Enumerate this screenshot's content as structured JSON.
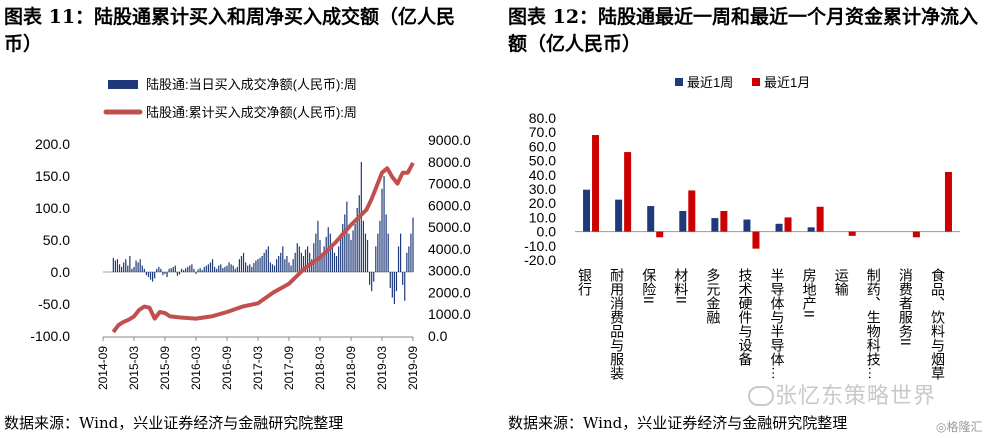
{
  "left": {
    "title": "图表 11：陆股通累计买入和周净买入成交额（亿人民币）",
    "source": "数据来源：Wind，兴业证券经济与金融研究院整理",
    "chart_data": {
      "type": "bar+line",
      "legend": [
        "陆股通:当日买入成交净额(人民币):周",
        "陆股通:累计买入成交净额(人民币):周"
      ],
      "legend_position": "top",
      "x_ticks": [
        "2014-09",
        "2015-03",
        "2015-09",
        "2016-03",
        "2016-09",
        "2017-03",
        "2017-09",
        "2018-03",
        "2018-09",
        "2019-03",
        "2019-09"
      ],
      "y_left_ticks": [
        "200.0",
        "150.0",
        "100.0",
        "50.0",
        "0.0",
        "-50.0",
        "-100.0"
      ],
      "y_left_range": [
        -100,
        200
      ],
      "y_right_ticks": [
        "9000.0",
        "8000.0",
        "7000.0",
        "6000.0",
        "5000.0",
        "4000.0",
        "3000.0",
        "2000.0",
        "1000.0",
        "0.0"
      ],
      "y_right_range": [
        0,
        9000
      ],
      "colors": {
        "bar": "#1f3a7a",
        "line": "#c0504d"
      },
      "cumulative_series": {
        "name": "陆股通:累计买入成交净额(人民币):周",
        "points": [
          [
            "2014-11",
            180
          ],
          [
            "2014-12",
            500
          ],
          [
            "2015-01",
            650
          ],
          [
            "2015-02",
            750
          ],
          [
            "2015-03",
            900
          ],
          [
            "2015-04",
            1200
          ],
          [
            "2015-05",
            1350
          ],
          [
            "2015-06",
            1300
          ],
          [
            "2015-07",
            800
          ],
          [
            "2015-08",
            1100
          ],
          [
            "2015-09",
            1050
          ],
          [
            "2015-10",
            900
          ],
          [
            "2015-12",
            850
          ],
          [
            "2016-03",
            800
          ],
          [
            "2016-06",
            900
          ],
          [
            "2016-09",
            1100
          ],
          [
            "2016-12",
            1350
          ],
          [
            "2017-03",
            1500
          ],
          [
            "2017-06",
            2000
          ],
          [
            "2017-09",
            2400
          ],
          [
            "2017-12",
            3100
          ],
          [
            "2018-03",
            3600
          ],
          [
            "2018-06",
            4300
          ],
          [
            "2018-09",
            5100
          ],
          [
            "2018-12",
            5800
          ],
          [
            "2019-01",
            6300
          ],
          [
            "2019-03",
            7500
          ],
          [
            "2019-04",
            7700
          ],
          [
            "2019-05",
            7300
          ],
          [
            "2019-06",
            7000
          ],
          [
            "2019-07",
            7500
          ],
          [
            "2019-08",
            7500
          ],
          [
            "2019-09",
            7950
          ]
        ]
      },
      "weekly_bars_note": "weekly bars approximated",
      "weekly_series": {
        "name": "陆股通:当日买入成交净额(人民币):周",
        "values": [
          22,
          18,
          20,
          12,
          8,
          15,
          20,
          10,
          25,
          5,
          8,
          18,
          15,
          20,
          10,
          5,
          -5,
          -8,
          -12,
          -15,
          -10,
          5,
          8,
          5,
          -5,
          -3,
          -8,
          5,
          6,
          8,
          10,
          -6,
          -4,
          5,
          3,
          6,
          8,
          10,
          12,
          5,
          -3,
          4,
          6,
          3,
          8,
          10,
          12,
          15,
          20,
          8,
          5,
          10,
          12,
          6,
          8,
          10,
          15,
          12,
          10,
          5,
          8,
          20,
          25,
          30,
          15,
          10,
          12,
          8,
          14,
          18,
          20,
          22,
          25,
          30,
          35,
          40,
          15,
          12,
          10,
          20,
          25,
          30,
          40,
          20,
          25,
          15,
          10,
          20,
          30,
          45,
          40,
          30,
          25,
          35,
          40,
          30,
          20,
          45,
          60,
          80,
          50,
          30,
          40,
          55,
          70,
          60,
          45,
          30,
          25,
          40,
          60,
          75,
          90,
          110,
          60,
          50,
          65,
          75,
          100,
          120,
          172,
          80,
          60,
          50,
          -20,
          -30,
          -15,
          40,
          60,
          80,
          130,
          150,
          90,
          60,
          -25,
          -40,
          -50,
          -30,
          40,
          60,
          -20,
          -45,
          30,
          40,
          60,
          85
        ]
      }
    }
  },
  "right": {
    "title": "图表 12：陆股通最近一周和最近一个月资金累计净流入额（亿人民币）",
    "source": "数据来源：Wind，兴业证券经济与金融研究院整理",
    "chart_data": {
      "type": "bar",
      "categories": [
        "银行",
        "耐用消费品与服装",
        "保险II",
        "材料II",
        "多元金融",
        "技术硬件与设备",
        "半导体与半导体…",
        "房地产II",
        "运输",
        "制药、生物科技…",
        "消费者服务II",
        "食品、饮料与烟草"
      ],
      "series": [
        {
          "name": "最近1周",
          "values": [
            29.5,
            22.5,
            18.0,
            14.5,
            9.5,
            8.5,
            5.5,
            3.0,
            0.0,
            0.0,
            0.0,
            0.0
          ]
        },
        {
          "name": "最近1月",
          "values": [
            68.0,
            56.0,
            -4.0,
            29.0,
            14.5,
            -12.0,
            10.0,
            17.5,
            -3.0,
            0.0,
            -4.0,
            42.0
          ]
        }
      ],
      "colors": {
        "series0": "#1f3a7a",
        "series1": "#cc0000"
      },
      "y_ticks": [
        "80.0",
        "70.0",
        "60.0",
        "50.0",
        "40.0",
        "30.0",
        "20.0",
        "10.0",
        "0.0",
        "-10.0",
        "-20.0"
      ],
      "ylim": [
        -20,
        80
      ],
      "legend_position": "top"
    }
  },
  "watermark": "张忆东策略世界",
  "watermark2": "◎格隆汇"
}
